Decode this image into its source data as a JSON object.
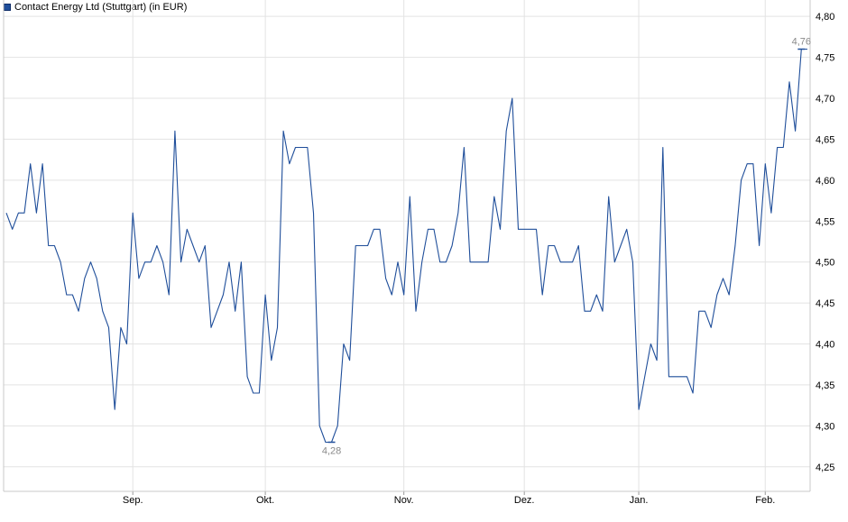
{
  "legend": {
    "label": "Contact Energy Ltd (Stuttgart) (in EUR)",
    "color": "#1f4e9a"
  },
  "chart_data": {
    "type": "line",
    "title": "",
    "xlabel": "",
    "ylabel": "",
    "ylim": [
      4.22,
      4.82
    ],
    "yticks": [
      "4,25",
      "4,30",
      "4,35",
      "4,40",
      "4,45",
      "4,50",
      "4,55",
      "4,60",
      "4,65",
      "4,70",
      "4,75",
      "4,80"
    ],
    "ytick_values": [
      4.25,
      4.3,
      4.35,
      4.4,
      4.45,
      4.5,
      4.55,
      4.6,
      4.65,
      4.7,
      4.75,
      4.8
    ],
    "xticks": [
      "Sep.",
      "Okt.",
      "Nov.",
      "Dez.",
      "Jan.",
      "Feb."
    ],
    "xtick_index": [
      21,
      43,
      66,
      86,
      105,
      126
    ],
    "grid": true,
    "series": [
      {
        "name": "Contact Energy Ltd (Stuttgart) (in EUR)",
        "color": "#1f4e9a",
        "values": [
          4.56,
          4.54,
          4.56,
          4.56,
          4.62,
          4.56,
          4.62,
          4.52,
          4.52,
          4.5,
          4.46,
          4.46,
          4.44,
          4.48,
          4.5,
          4.48,
          4.44,
          4.42,
          4.32,
          4.42,
          4.4,
          4.56,
          4.48,
          4.5,
          4.5,
          4.52,
          4.5,
          4.46,
          4.66,
          4.5,
          4.54,
          4.52,
          4.5,
          4.52,
          4.42,
          4.44,
          4.46,
          4.5,
          4.44,
          4.5,
          4.36,
          4.34,
          4.34,
          4.46,
          4.38,
          4.42,
          4.66,
          4.62,
          4.64,
          4.64,
          4.64,
          4.56,
          4.3,
          4.28,
          4.28,
          4.3,
          4.4,
          4.38,
          4.52,
          4.52,
          4.52,
          4.54,
          4.54,
          4.48,
          4.46,
          4.5,
          4.46,
          4.58,
          4.44,
          4.5,
          4.54,
          4.54,
          4.5,
          4.5,
          4.52,
          4.56,
          4.64,
          4.5,
          4.5,
          4.5,
          4.5,
          4.58,
          4.54,
          4.66,
          4.7,
          4.54,
          4.54,
          4.54,
          4.54,
          4.46,
          4.52,
          4.52,
          4.5,
          4.5,
          4.5,
          4.52,
          4.44,
          4.44,
          4.46,
          4.44,
          4.58,
          4.5,
          4.52,
          4.54,
          4.5,
          4.32,
          4.36,
          4.4,
          4.38,
          4.64,
          4.36,
          4.36,
          4.36,
          4.36,
          4.34,
          4.44,
          4.44,
          4.42,
          4.46,
          4.48,
          4.46,
          4.52,
          4.6,
          4.62,
          4.62,
          4.52,
          4.62,
          4.56,
          4.64,
          4.64,
          4.72,
          4.66,
          4.76,
          4.76
        ]
      }
    ],
    "annotations": [
      {
        "text": "4,28",
        "index": 54,
        "value": 4.28,
        "position": "below"
      },
      {
        "text": "4,76",
        "index": 132,
        "value": 4.76,
        "position": "above"
      }
    ]
  }
}
